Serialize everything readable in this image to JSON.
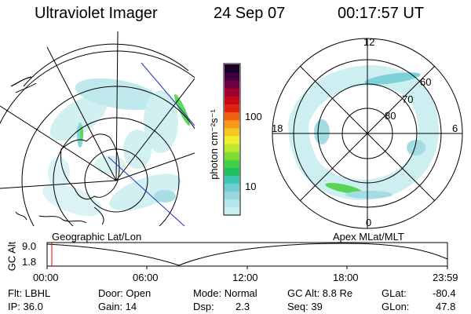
{
  "header": {
    "instrument": "Ultraviolet Imager",
    "date": "24 Sep 07",
    "time": "00:17:57 UT"
  },
  "left_panel": {
    "caption": "Geographic Lat/Lon"
  },
  "right_panel": {
    "caption": "Apex MLat/MLT",
    "mlt_labels": {
      "top": "12",
      "bottom": "0",
      "left": "18",
      "right": "6"
    },
    "mlat_labels": [
      "60",
      "70",
      "80"
    ]
  },
  "colorbar": {
    "unit_label": "photon cm⁻²s⁻¹",
    "ticks": [
      "100",
      "10"
    ],
    "colors": [
      "#c8eef0",
      "#b6e6ec",
      "#9ad9e0",
      "#70cdd4",
      "#3cc8b0",
      "#20c060",
      "#44d040",
      "#80dc30",
      "#bce830",
      "#f0f030",
      "#f8c820",
      "#f89818",
      "#f06010",
      "#e02010",
      "#c80818",
      "#a00030",
      "#700040",
      "#400040",
      "#180028"
    ]
  },
  "altitude_plot": {
    "ylabel": "GC Alt",
    "yticks": [
      "9.0",
      "1.8"
    ],
    "xticks": [
      "00:00",
      "06:00",
      "12:00",
      "18:00",
      "23:59"
    ]
  },
  "info": {
    "row1": {
      "flt": "Flt: LBHL",
      "door": "Door: Open",
      "mode": "Mode: Normal",
      "gc_alt": "GC Alt: 8.8 Re",
      "glat_label": "GLat:",
      "glat_value": "-80.4"
    },
    "row2": {
      "ip": "IP: 36.0",
      "gain": "Gain: 14",
      "dsp_label": "Dsp:",
      "dsp_value": "2.3",
      "seq": "Seq: 39",
      "glon_label": "GLon:",
      "glon_value": "47.8"
    }
  }
}
